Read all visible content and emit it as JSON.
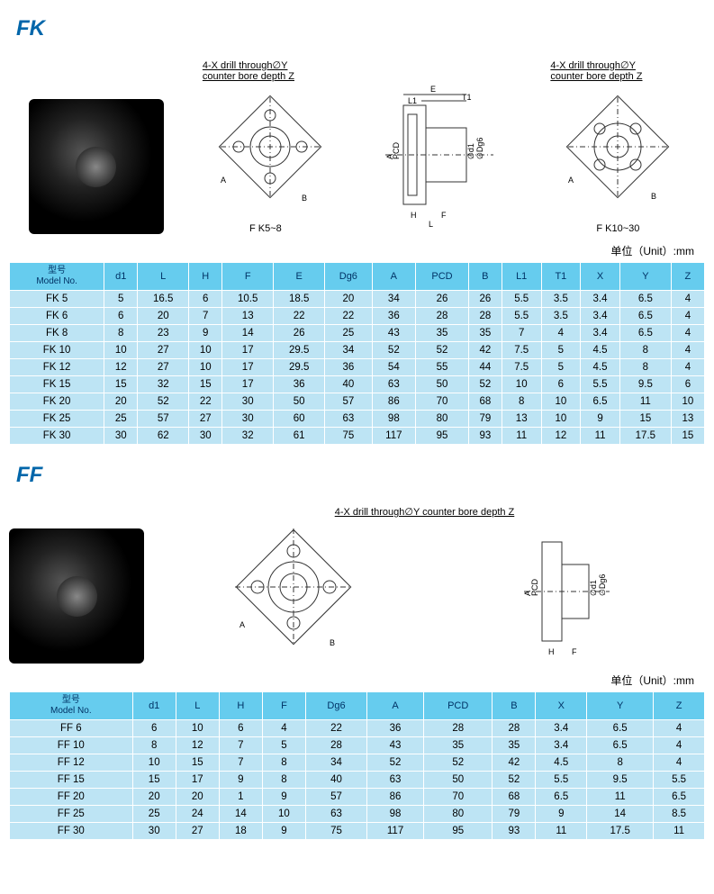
{
  "fk": {
    "title": "FK",
    "drill_label_line1": "4-X drill through∅Y",
    "drill_label_line2": "counter bore depth Z",
    "caption1": "F K5~8",
    "caption2": "F K10~30",
    "unit_label": "单位（Unit）:mm",
    "columns": [
      "型号\nModel No.",
      "d1",
      "L",
      "H",
      "F",
      "E",
      "Dg6",
      "A",
      "PCD",
      "B",
      "L1",
      "T1",
      "X",
      "Y",
      "Z"
    ],
    "rows": [
      [
        "FK 5",
        "5",
        "16.5",
        "6",
        "10.5",
        "18.5",
        "20",
        "34",
        "26",
        "26",
        "5.5",
        "3.5",
        "3.4",
        "6.5",
        "4"
      ],
      [
        "FK 6",
        "6",
        "20",
        "7",
        "13",
        "22",
        "22",
        "36",
        "28",
        "28",
        "5.5",
        "3.5",
        "3.4",
        "6.5",
        "4"
      ],
      [
        "FK 8",
        "8",
        "23",
        "9",
        "14",
        "26",
        "25",
        "43",
        "35",
        "35",
        "7",
        "4",
        "3.4",
        "6.5",
        "4"
      ],
      [
        "FK 10",
        "10",
        "27",
        "10",
        "17",
        "29.5",
        "34",
        "52",
        "52",
        "42",
        "7.5",
        "5",
        "4.5",
        "8",
        "4"
      ],
      [
        "FK 12",
        "12",
        "27",
        "10",
        "17",
        "29.5",
        "36",
        "54",
        "55",
        "44",
        "7.5",
        "5",
        "4.5",
        "8",
        "4"
      ],
      [
        "FK 15",
        "15",
        "32",
        "15",
        "17",
        "36",
        "40",
        "63",
        "50",
        "52",
        "10",
        "6",
        "5.5",
        "9.5",
        "6"
      ],
      [
        "FK 20",
        "20",
        "52",
        "22",
        "30",
        "50",
        "57",
        "86",
        "70",
        "68",
        "8",
        "10",
        "6.5",
        "11",
        "10"
      ],
      [
        "FK 25",
        "25",
        "57",
        "27",
        "30",
        "60",
        "63",
        "98",
        "80",
        "79",
        "13",
        "10",
        "9",
        "15",
        "13"
      ],
      [
        "FK 30",
        "30",
        "62",
        "30",
        "32",
        "61",
        "75",
        "117",
        "95",
        "93",
        "11",
        "12",
        "11",
        "17.5",
        "15"
      ]
    ]
  },
  "ff": {
    "title": "FF",
    "drill_label": "4-X drill through∅Y counter bore depth Z",
    "unit_label": "单位（Unit）:mm",
    "columns": [
      "型号\nModel No.",
      "d1",
      "L",
      "H",
      "F",
      "Dg6",
      "A",
      "PCD",
      "B",
      "X",
      "Y",
      "Z"
    ],
    "rows": [
      [
        "FF 6",
        "6",
        "10",
        "6",
        "4",
        "22",
        "36",
        "28",
        "28",
        "3.4",
        "6.5",
        "4"
      ],
      [
        "FF 10",
        "8",
        "12",
        "7",
        "5",
        "28",
        "43",
        "35",
        "35",
        "3.4",
        "6.5",
        "4"
      ],
      [
        "FF 12",
        "10",
        "15",
        "7",
        "8",
        "34",
        "52",
        "52",
        "42",
        "4.5",
        "8",
        "4"
      ],
      [
        "FF 15",
        "15",
        "17",
        "9",
        "8",
        "40",
        "63",
        "50",
        "52",
        "5.5",
        "9.5",
        "5.5"
      ],
      [
        "FF 20",
        "20",
        "20",
        "1",
        "9",
        "57",
        "86",
        "70",
        "68",
        "6.5",
        "11",
        "6.5"
      ],
      [
        "FF 25",
        "25",
        "24",
        "14",
        "10",
        "63",
        "98",
        "80",
        "79",
        "9",
        "14",
        "8.5"
      ],
      [
        "FF 30",
        "30",
        "27",
        "18",
        "9",
        "75",
        "117",
        "95",
        "93",
        "11",
        "17.5",
        "11"
      ]
    ]
  },
  "diagram_labels": {
    "A": "A",
    "B": "B",
    "PCD": "PCD",
    "E": "E",
    "L1": "L1",
    "T1": "T1",
    "H": "H",
    "F": "F",
    "L": "L",
    "d1": "∅d1",
    "Dg6": "∅Dg6"
  },
  "colors": {
    "title": "#0066aa",
    "th_bg": "#66ccee",
    "th_text": "#003366",
    "row_bg": "#bde4f4"
  }
}
